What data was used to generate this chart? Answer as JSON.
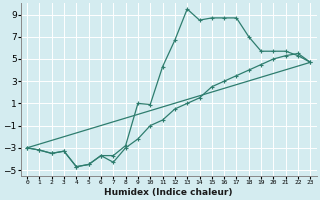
{
  "xlabel": "Humidex (Indice chaleur)",
  "ylabel": "",
  "background_color": "#d4ecf0",
  "grid_color": "#ffffff",
  "line_color": "#2e7d6e",
  "xlim": [
    -0.5,
    23.5
  ],
  "ylim": [
    -5.5,
    10.0
  ],
  "xticks": [
    0,
    1,
    2,
    3,
    4,
    5,
    6,
    7,
    8,
    9,
    10,
    11,
    12,
    13,
    14,
    15,
    16,
    17,
    18,
    19,
    20,
    21,
    22,
    23
  ],
  "yticks": [
    -5,
    -3,
    -1,
    1,
    3,
    5,
    7,
    9
  ],
  "line1_x": [
    0,
    1,
    2,
    3,
    4,
    5,
    6,
    7,
    8,
    9,
    10,
    11,
    12,
    13,
    14,
    15,
    16,
    17,
    18,
    19,
    20,
    21,
    22,
    23
  ],
  "line1_y": [
    -3,
    -3.2,
    -3.5,
    -3.3,
    -4.7,
    -4.5,
    -3.7,
    -3.7,
    -2.8,
    1.0,
    0.9,
    4.3,
    6.7,
    9.5,
    8.5,
    8.7,
    8.7,
    8.7,
    7.0,
    5.7,
    5.7,
    5.7,
    5.3,
    4.7
  ],
  "line2_x": [
    0,
    1,
    2,
    3,
    4,
    5,
    6,
    7,
    8,
    9,
    10,
    11,
    12,
    13,
    14,
    15,
    16,
    17,
    18,
    19,
    20,
    21,
    22,
    23
  ],
  "line2_y": [
    -3,
    -3.2,
    -3.5,
    -3.3,
    -4.7,
    -4.5,
    -3.7,
    -4.3,
    -3.0,
    -2.2,
    -1.0,
    -0.5,
    0.5,
    1.0,
    1.5,
    2.5,
    3.0,
    3.5,
    4.0,
    4.5,
    5.0,
    5.3,
    5.5,
    4.7
  ],
  "line3_x": [
    0,
    23
  ],
  "line3_y": [
    -3,
    4.7
  ]
}
